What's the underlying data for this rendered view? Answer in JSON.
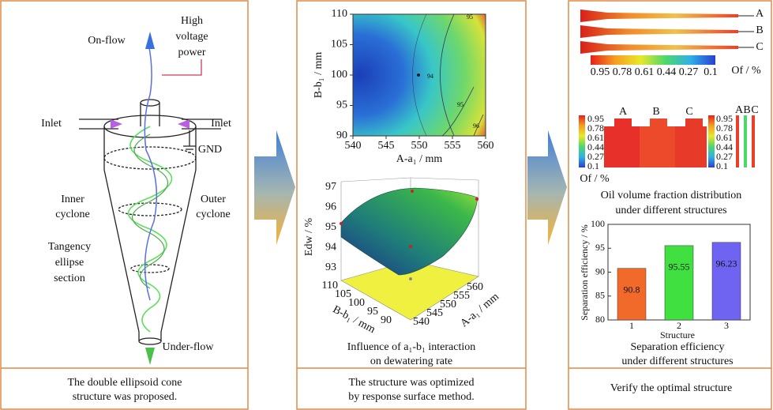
{
  "panel1": {
    "labels": {
      "high_voltage": [
        "High",
        "voltage",
        "power"
      ],
      "on_flow": "On-flow",
      "inlet_left": "Inlet",
      "inlet_right": "Inlet",
      "gnd": "GND",
      "inner_cyclone": [
        "Inner",
        "cyclone"
      ],
      "outer_cyclone": [
        "Outer",
        "cyclone"
      ],
      "tangency": [
        "Tangency",
        "ellipse",
        "section"
      ],
      "under_flow": "Under-flow"
    },
    "caption": [
      "The double ellipsoid cone",
      "structure was proposed."
    ]
  },
  "panel2": {
    "contour": {
      "xlabel": "A-a₁ / mm",
      "ylabel": "B-b₁ / mm",
      "xlim": [
        540,
        560
      ],
      "ylim": [
        90,
        110
      ],
      "xticks": [
        540,
        545,
        550,
        555,
        560
      ],
      "yticks": [
        90,
        95,
        100,
        105,
        110
      ],
      "contour_labels": [
        95,
        94,
        95,
        96
      ]
    },
    "surface": {
      "zlabel": "Edw / %",
      "blabel": "B-b₁ / mm",
      "alabel": "A-a₁ / mm",
      "zticks": [
        97,
        96,
        95,
        94,
        93
      ],
      "bticks": [
        110,
        105,
        100,
        95,
        90
      ],
      "aticks": [
        540,
        545,
        550,
        555,
        560
      ],
      "title": [
        "Influence of a₁-b₁ interaction",
        "on dewatering rate"
      ]
    },
    "caption": [
      "The structure was optimized",
      "by response surface method."
    ]
  },
  "panel3": {
    "top": {
      "structures": [
        "A",
        "B",
        "C"
      ],
      "colorbar_ticks": [
        0.95,
        0.78,
        0.61,
        0.44,
        0.27,
        0.1
      ],
      "colorbar_label": "Of / %"
    },
    "middle": {
      "structures": [
        "A",
        "B",
        "C"
      ],
      "left_colorbar_ticks": [
        0.95,
        0.78,
        0.61,
        0.44,
        0.27,
        0.1
      ],
      "right_colorbar_ticks": [
        0.95,
        0.78,
        0.61,
        0.44,
        0.27,
        0.1
      ],
      "right_structures": [
        "A",
        "B",
        "C"
      ],
      "colorbar_label": "Of / %",
      "title": [
        "Oil volume fraction distribution",
        "under different structures"
      ]
    },
    "bar_chart": {
      "type": "bar",
      "ylabel": "Separation efficiency / %",
      "xlabel": "Structure",
      "categories": [
        "1",
        "2",
        "3"
      ],
      "values": [
        90.8,
        95.55,
        96.23
      ],
      "colors": [
        "#f26a2a",
        "#3fe03f",
        "#6f63f2"
      ],
      "ylim": [
        80,
        100
      ],
      "yticks": [
        80,
        85,
        90,
        95,
        100
      ],
      "title": [
        "Separation efficiency",
        "under different structures"
      ]
    },
    "caption": "Verify the optimal structure"
  }
}
